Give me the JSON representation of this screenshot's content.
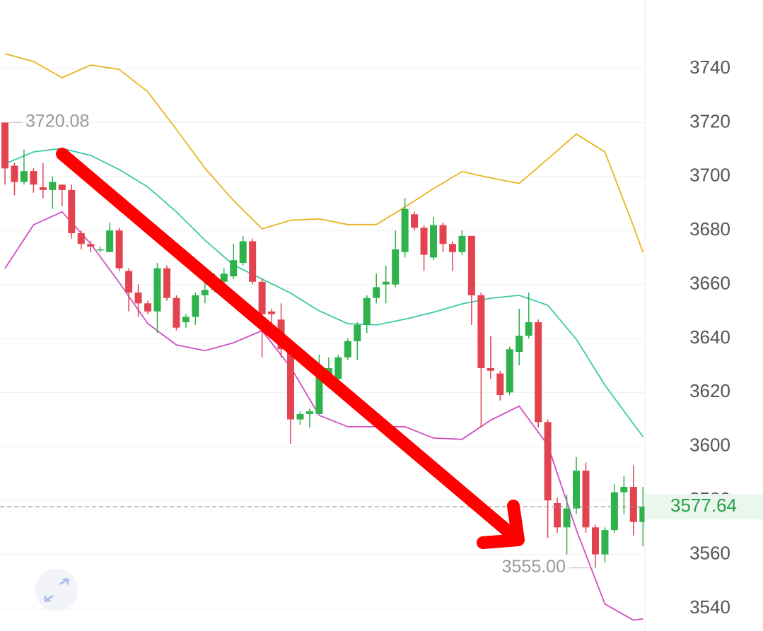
{
  "chart_data": {
    "type": "candlestick",
    "x": [
      0,
      1,
      2,
      3,
      4,
      5,
      6,
      7,
      8,
      9,
      10,
      11,
      12,
      13,
      14,
      15,
      16,
      17,
      18,
      19,
      20,
      21,
      22,
      23,
      24,
      25,
      26,
      27,
      28,
      29,
      30,
      31,
      32,
      33,
      34,
      35,
      36,
      37,
      38,
      39,
      40,
      41,
      42,
      43,
      44,
      45,
      46,
      47,
      48,
      49,
      50,
      51,
      52,
      53,
      54,
      55,
      56,
      57,
      58,
      59,
      60,
      61,
      62,
      63,
      64,
      65,
      66,
      67
    ],
    "open": [
      3720,
      3704,
      3698,
      3702,
      3696,
      3695,
      3697,
      3695,
      3679,
      3675,
      3673,
      3672,
      3680,
      3665,
      3657,
      3653,
      3650,
      3666,
      3655,
      3646,
      3648,
      3656,
      3658,
      3661,
      3663,
      3668,
      3676,
      3661,
      3650,
      3647,
      3636,
      3610,
      3612,
      3612,
      3625,
      3625,
      3633,
      3639,
      3645,
      3655,
      3660,
      3660,
      3672,
      3686,
      3681,
      3670,
      3682,
      3675,
      3672,
      3678,
      3656,
      3629,
      3627,
      3620,
      3635,
      3641,
      3646,
      3609,
      3579,
      3570,
      3577,
      3591,
      3570,
      3560,
      3569,
      3583,
      3585,
      3572
    ],
    "high": [
      3720.08,
      3705,
      3710,
      3703,
      3705,
      3700,
      3697,
      3697,
      3680,
      3676,
      3674,
      3683,
      3681,
      3666,
      3660,
      3654,
      3668,
      3667,
      3656,
      3649,
      3657,
      3662,
      3664,
      3666,
      3675,
      3678,
      3677,
      3662,
      3651,
      3653,
      3637,
      3613,
      3614,
      3634,
      3633,
      3634,
      3640,
      3646,
      3656,
      3664,
      3667,
      3680,
      3692,
      3687,
      3682,
      3685,
      3683,
      3676,
      3680,
      3678,
      3657,
      3641,
      3628,
      3637,
      3651,
      3657,
      3647,
      3610,
      3581,
      3582,
      3596,
      3594,
      3571,
      3570,
      3586,
      3589,
      3593,
      3585
    ],
    "low": [
      3697,
      3693,
      3697,
      3694,
      3692,
      3688,
      3689,
      3677,
      3673,
      3672,
      3672,
      3672,
      3665,
      3650,
      3648,
      3649,
      3642,
      3654,
      3643,
      3644,
      3645,
      3653,
      3657,
      3660,
      3662,
      3667,
      3660,
      3633,
      3645,
      3633,
      3601,
      3608,
      3607,
      3612,
      3624,
      3624,
      3632,
      3632,
      3642,
      3653,
      3653,
      3659,
      3670,
      3680,
      3665,
      3669,
      3672,
      3665,
      3671,
      3645,
      3607,
      3625,
      3617,
      3619,
      3630,
      3640,
      3607,
      3566,
      3568,
      3560,
      3575,
      3568,
      3555,
      3557,
      3568,
      3575,
      3567,
      3563
    ],
    "close": [
      3703,
      3698,
      3702,
      3697,
      3695,
      3698,
      3695,
      3679,
      3675,
      3674,
      3673,
      3680,
      3666,
      3657,
      3653,
      3650,
      3666,
      3655,
      3644,
      3648,
      3656,
      3658,
      3662,
      3664,
      3669,
      3676,
      3661,
      3649,
      3649,
      3636,
      3610,
      3612,
      3613,
      3630,
      3629,
      3633,
      3639,
      3645,
      3655,
      3659,
      3661,
      3673,
      3688,
      3681,
      3671,
      3682,
      3675,
      3672,
      3678,
      3656,
      3629,
      3628,
      3619,
      3636,
      3641,
      3646,
      3609,
      3580,
      3570,
      3577,
      3591,
      3570,
      3560,
      3569,
      3583,
      3585,
      3572,
      3577.64
    ],
    "up_color": "#2fb24c",
    "down_color": "#e2434f",
    "bands": [
      {
        "color": "#e8b420",
        "x": [
          0,
          3,
          6,
          9,
          12,
          15,
          18,
          21,
          24,
          27,
          30,
          33,
          36,
          39,
          42,
          45,
          48,
          51,
          54,
          57,
          60,
          63,
          66,
          67
        ],
        "values": [
          3745.5,
          3742.6,
          3736.6,
          3741.3,
          3739.7,
          3731.4,
          3717.5,
          3703.1,
          3691.1,
          3680.6,
          3683.8,
          3684.3,
          3682.2,
          3682.2,
          3688.7,
          3695.5,
          3701.8,
          3699.5,
          3697.4,
          3706.5,
          3715.7,
          3709.1,
          3681.6,
          3671.9
        ]
      },
      {
        "color": "#3cc9a9",
        "x": [
          0,
          3,
          6,
          9,
          12,
          15,
          18,
          21,
          24,
          27,
          30,
          33,
          36,
          39,
          42,
          45,
          48,
          51,
          54,
          57,
          60,
          63,
          66,
          67
        ],
        "values": [
          3704.7,
          3709.1,
          3710.4,
          3707.8,
          3702.6,
          3696.1,
          3686.9,
          3676.4,
          3667.2,
          3662.0,
          3656.8,
          3650.2,
          3645.5,
          3645.0,
          3647.1,
          3649.7,
          3652.8,
          3654.9,
          3656.0,
          3652.3,
          3639.7,
          3622.7,
          3608.3,
          3603.6
        ]
      },
      {
        "color": "#cf4fc2",
        "x": [
          0,
          3,
          6,
          9,
          12,
          15,
          18,
          21,
          24,
          27,
          30,
          33,
          36,
          39,
          42,
          45,
          48,
          51,
          54,
          57,
          60,
          63,
          66,
          67
        ],
        "values": [
          3665.9,
          3682.1,
          3686.9,
          3675.1,
          3660.7,
          3645.5,
          3637.6,
          3635.5,
          3638.4,
          3642.9,
          3629.3,
          3611.5,
          3607.3,
          3607.3,
          3607.3,
          3603.1,
          3602.6,
          3609.7,
          3614.9,
          3600.5,
          3569.1,
          3541.6,
          3535.6,
          3536.1
        ]
      }
    ],
    "xlim": [
      -0.52,
      67.2
    ],
    "ylim": [
      3531.6,
      3765.4
    ],
    "yticks": [
      3540,
      3560,
      3580,
      3600,
      3620,
      3640,
      3660,
      3680,
      3700,
      3720,
      3740
    ],
    "grid": true,
    "high_label": 3720.08,
    "low_label": {
      "value": 3555,
      "label": "3555.00"
    },
    "last_price": 3577.64
  }
}
